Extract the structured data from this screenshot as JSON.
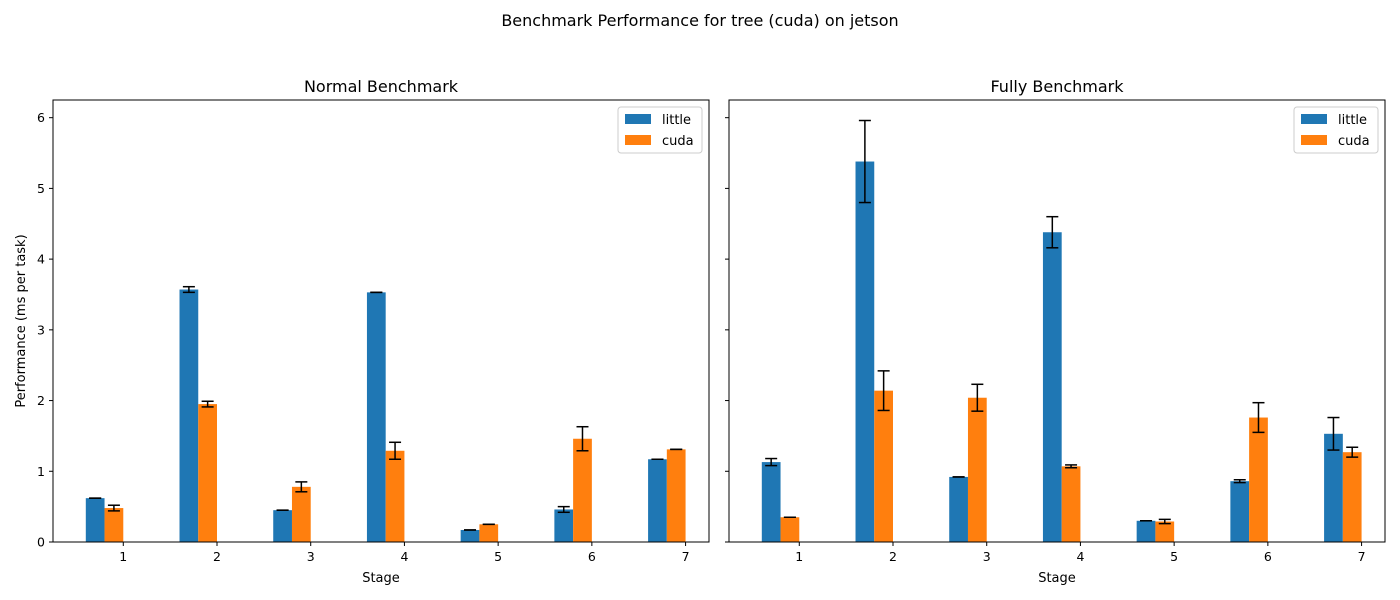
{
  "chart_data": {
    "title": "Benchmark Performance for tree (cuda) on jetson",
    "type": "bar",
    "ylabel": "Performance (ms per task)",
    "xlabel": "Stage",
    "ylim": [
      0,
      6.25
    ],
    "yticks": [
      "0",
      "1",
      "2",
      "3",
      "4",
      "5",
      "6"
    ],
    "categories": [
      "1",
      "2",
      "3",
      "4",
      "5",
      "6",
      "7"
    ],
    "legend_position": "top-right",
    "grid": false,
    "error_bars": true,
    "shared_y": true,
    "colors": {
      "little": "#1f77b4",
      "cuda": "#ff7f0e"
    },
    "panels": [
      {
        "title": "Normal Benchmark",
        "series": [
          {
            "name": "little",
            "values": [
              0.62,
              3.57,
              0.45,
              3.53,
              0.17,
              0.46,
              1.17
            ],
            "errors": [
              0.0,
              0.04,
              0.0,
              0.0,
              0.0,
              0.04,
              0.0
            ]
          },
          {
            "name": "cuda",
            "values": [
              0.48,
              1.95,
              0.78,
              1.29,
              0.25,
              1.46,
              1.31
            ],
            "errors": [
              0.04,
              0.04,
              0.07,
              0.12,
              0.0,
              0.17,
              0.0
            ]
          }
        ]
      },
      {
        "title": "Fully Benchmark",
        "series": [
          {
            "name": "little",
            "values": [
              1.13,
              5.38,
              0.92,
              4.38,
              0.3,
              0.86,
              1.53
            ],
            "errors": [
              0.05,
              0.58,
              0.0,
              0.22,
              0.0,
              0.02,
              0.23
            ]
          },
          {
            "name": "cuda",
            "values": [
              0.35,
              2.14,
              2.04,
              1.07,
              0.29,
              1.76,
              1.27
            ],
            "errors": [
              0.0,
              0.28,
              0.19,
              0.02,
              0.03,
              0.21,
              0.07
            ]
          }
        ]
      }
    ]
  }
}
